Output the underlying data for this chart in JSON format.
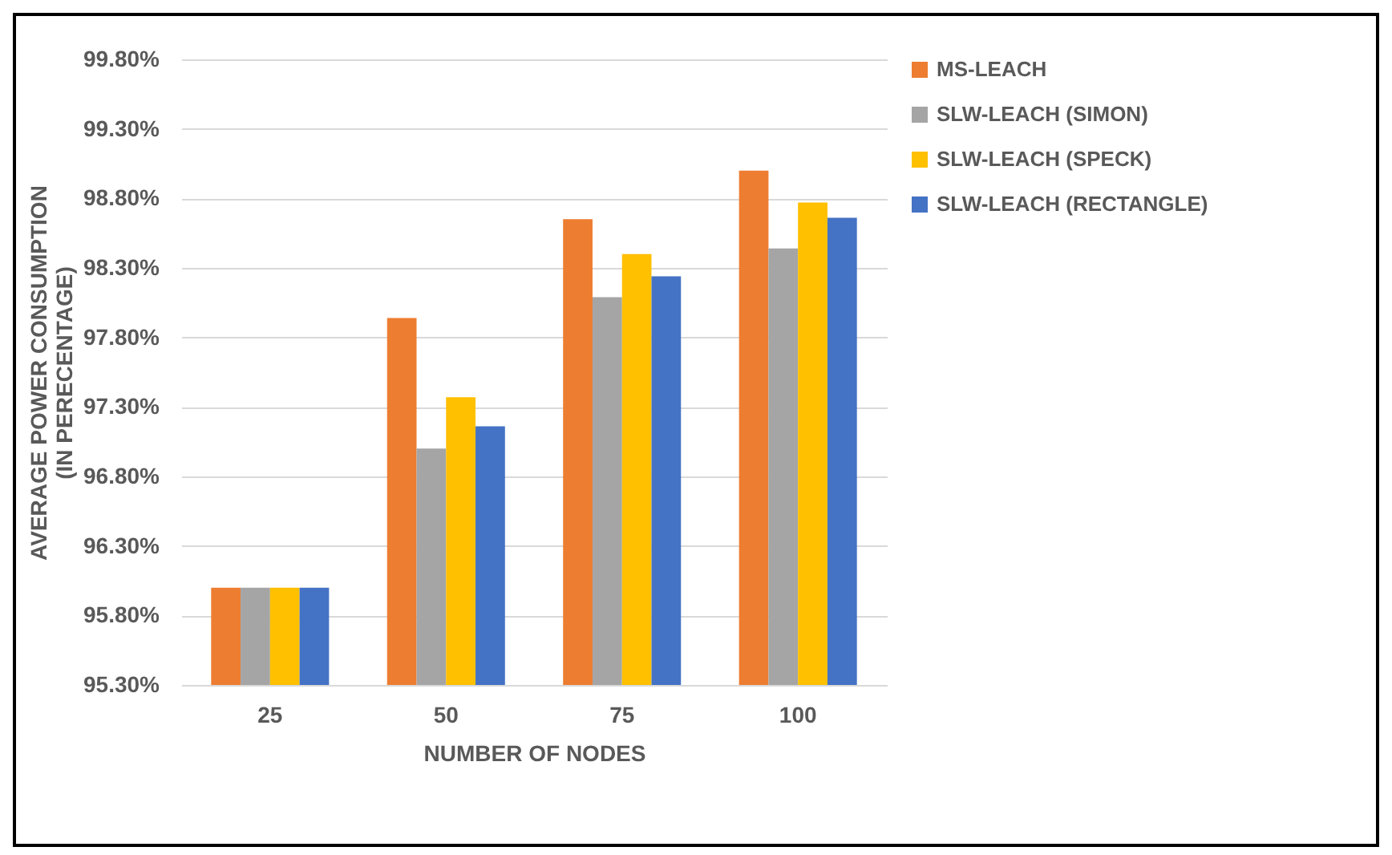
{
  "chart_data": {
    "type": "bar",
    "xlabel": "NUMBER OF NODES",
    "ylabel": "AVERAGE POWER CONSUMPTION (IN PERECENTAGE)",
    "categories": [
      "25",
      "50",
      "75",
      "100"
    ],
    "series": [
      {
        "name": "MS-LEACH",
        "color": "#ed7d31",
        "values": [
          96.0,
          97.94,
          98.65,
          99.0
        ]
      },
      {
        "name": "SLW-LEACH (SIMON)",
        "color": "#a5a5a5",
        "values": [
          96.0,
          97.0,
          98.09,
          98.44
        ]
      },
      {
        "name": "SLW-LEACH (SPECK)",
        "color": "#ffc000",
        "values": [
          96.0,
          97.37,
          98.4,
          98.77
        ]
      },
      {
        "name": "SLW-LEACH (RECTANGLE)",
        "color": "#4472c4",
        "values": [
          96.0,
          97.16,
          98.24,
          98.66
        ]
      }
    ],
    "ylim": [
      95.3,
      99.8
    ],
    "yticks": [
      {
        "value": 95.3,
        "label": "95.30%"
      },
      {
        "value": 95.8,
        "label": "95.80%"
      },
      {
        "value": 96.3,
        "label": "96.30%"
      },
      {
        "value": 96.8,
        "label": "96.80%"
      },
      {
        "value": 97.3,
        "label": "97.30%"
      },
      {
        "value": 97.8,
        "label": "97.80%"
      },
      {
        "value": 98.3,
        "label": "98.30%"
      },
      {
        "value": 98.8,
        "label": "98.80%"
      },
      {
        "value": 99.3,
        "label": "99.30%"
      },
      {
        "value": 99.8,
        "label": "99.80%"
      }
    ],
    "grid": "y",
    "legend": "right"
  }
}
